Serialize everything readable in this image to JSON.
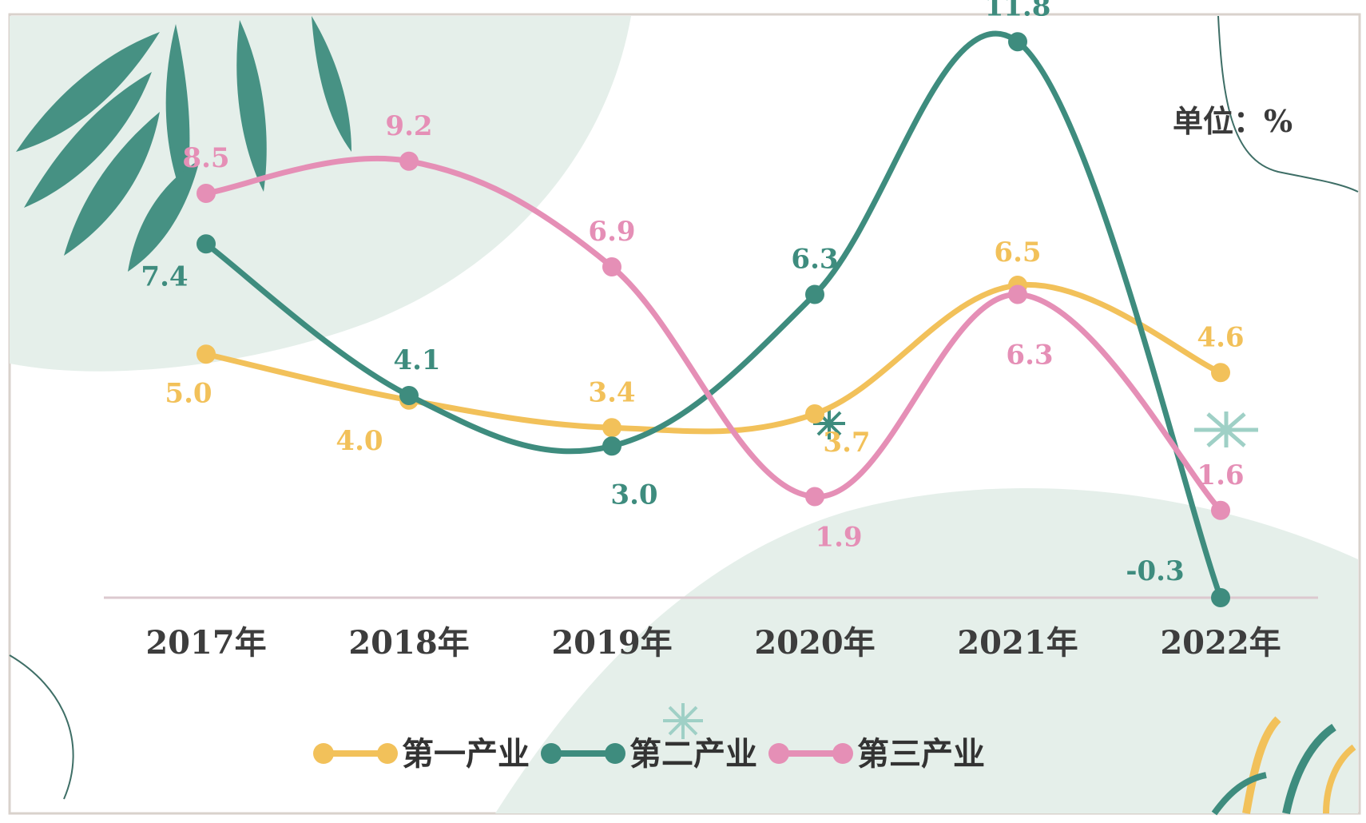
{
  "chart_data": {
    "type": "line",
    "unit_label": "单位：%",
    "categories": [
      "2017年",
      "2018年",
      "2019年",
      "2020年",
      "2021年",
      "2022年"
    ],
    "ylim": [
      -1,
      13
    ],
    "grid": false,
    "legend_position": "bottom-center",
    "series": [
      {
        "name": "第一产业",
        "color": "#f2c15a",
        "values": [
          5.0,
          4.0,
          3.4,
          3.7,
          6.5,
          4.6
        ]
      },
      {
        "name": "第二产业",
        "color": "#3e8c7e",
        "values": [
          7.4,
          4.1,
          3.0,
          6.3,
          11.8,
          -0.3
        ]
      },
      {
        "name": "第三产业",
        "color": "#e58fb6",
        "values": [
          8.5,
          9.2,
          6.9,
          1.9,
          6.3,
          1.6
        ]
      }
    ]
  }
}
